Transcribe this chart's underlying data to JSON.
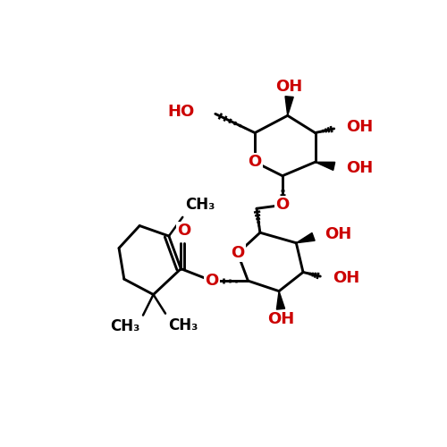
{
  "bg_color": "#ffffff",
  "bond_color": "#000000",
  "o_color": "#cc0000",
  "lw": 2.1,
  "fs": 13,
  "fig_w": 5.0,
  "fig_h": 5.0,
  "dpi": 100,
  "xlim": [
    0,
    10
  ],
  "ylim": [
    0,
    10
  ]
}
